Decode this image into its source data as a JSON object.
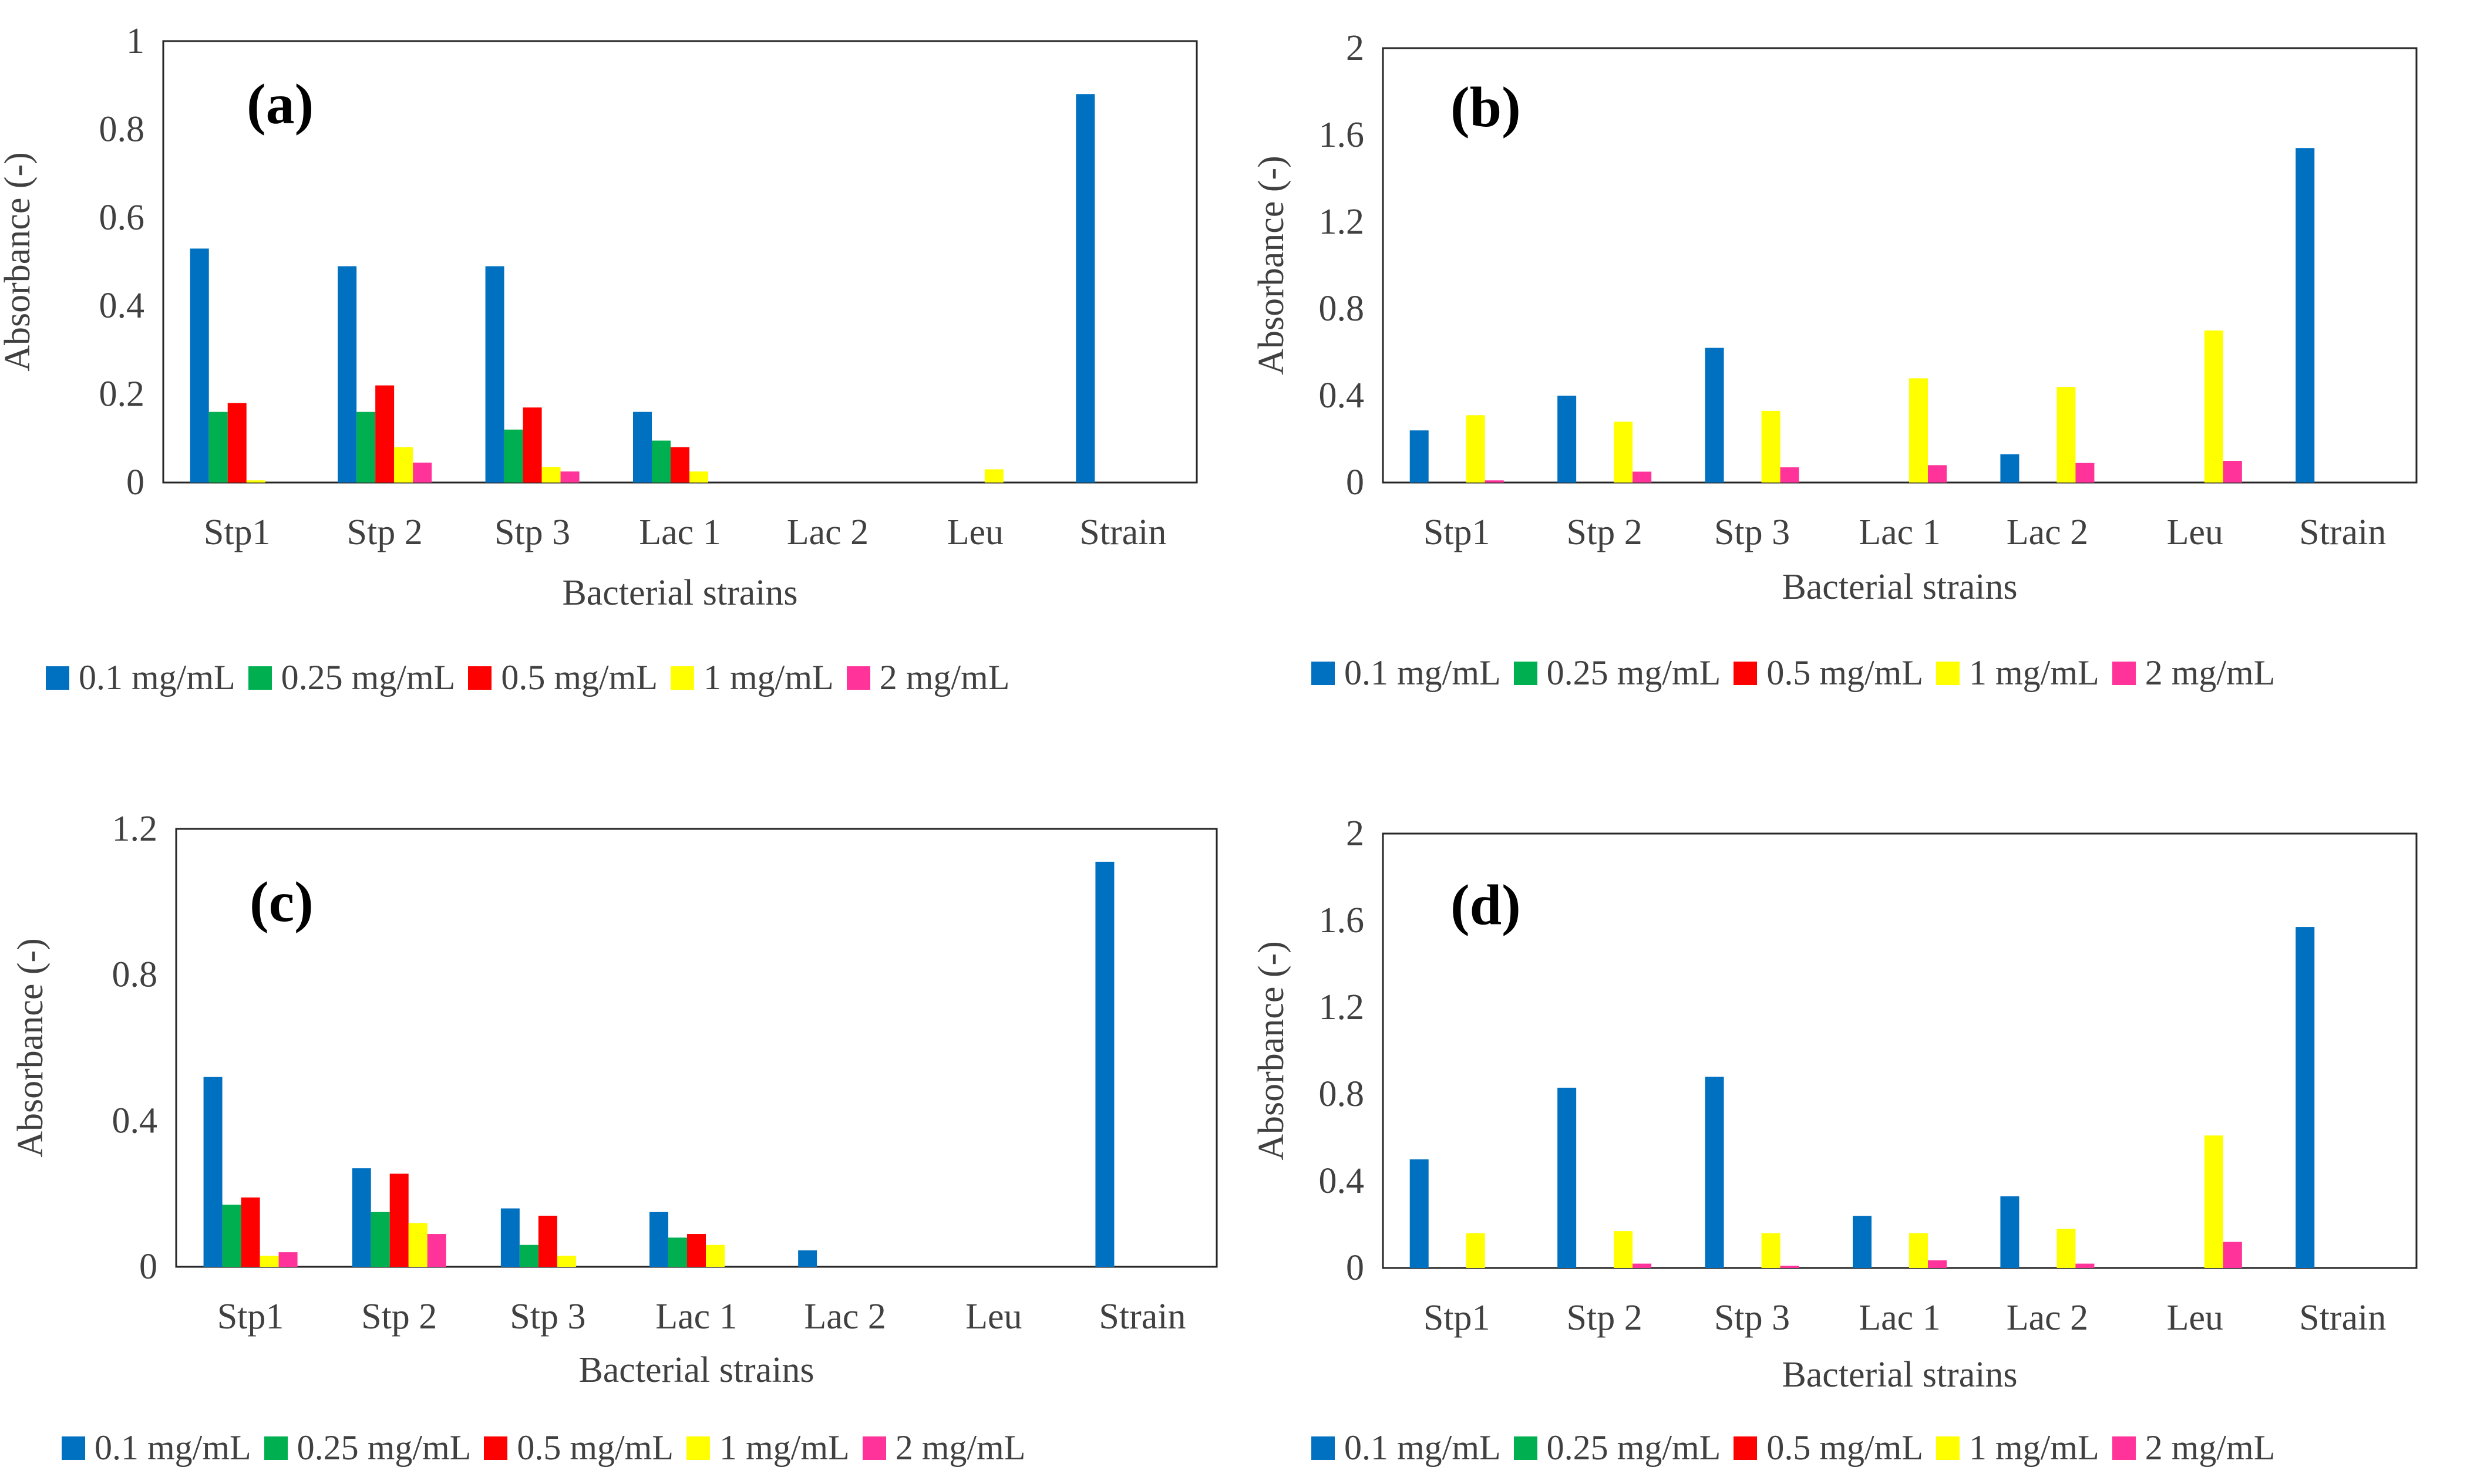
{
  "chart_data": [
    {
      "type": "bar",
      "title": "(a)",
      "xlabel": "Bacterial strains",
      "ylabel": "Absorbance (-)",
      "ylim": [
        0,
        1
      ],
      "yticks": [
        0,
        0.2,
        0.4,
        0.6,
        0.8,
        1
      ],
      "ytick_labels": [
        "0",
        "0.2",
        "0.4",
        "0.6",
        "0.8",
        "1"
      ],
      "categories": [
        "Stp1",
        "Stp 2",
        "Stp 3",
        "Lac 1",
        "Lac 2",
        "Leu",
        "Strain"
      ],
      "series": [
        {
          "name": "0.1 mg/mL",
          "color": "#0070C0",
          "values": [
            0.53,
            0.49,
            0.49,
            0.16,
            0,
            0,
            0.88
          ]
        },
        {
          "name": "0.25 mg/mL",
          "color": "#00B050",
          "values": [
            0.16,
            0.16,
            0.12,
            0.095,
            0,
            0,
            0
          ]
        },
        {
          "name": "0.5 mg/mL",
          "color": "#FF0000",
          "values": [
            0.18,
            0.22,
            0.17,
            0.08,
            0,
            0,
            0
          ]
        },
        {
          "name": "1 mg/mL",
          "color": "#FFFF00",
          "values": [
            0.005,
            0.08,
            0.035,
            0.025,
            0,
            0.03,
            0
          ]
        },
        {
          "name": "2 mg/mL",
          "color": "#FF3399",
          "values": [
            0,
            0.045,
            0.025,
            0,
            0,
            0,
            0
          ]
        }
      ]
    },
    {
      "type": "bar",
      "title": "(b)",
      "xlabel": "Bacterial strains",
      "ylabel": "Absorbance (-)",
      "ylim": [
        0,
        2
      ],
      "yticks": [
        0,
        0.4,
        0.8,
        1.2,
        1.6,
        2
      ],
      "ytick_labels": [
        "0",
        "0.4",
        "0.8",
        "1.2",
        "1.6",
        "2"
      ],
      "categories": [
        "Stp1",
        "Stp 2",
        "Stp 3",
        "Lac 1",
        "Lac 2",
        "Leu",
        "Strain"
      ],
      "series": [
        {
          "name": "0.1 mg/mL",
          "color": "#0070C0",
          "values": [
            0.24,
            0.4,
            0.62,
            0,
            0.13,
            0,
            1.54
          ]
        },
        {
          "name": "0.25 mg/mL",
          "color": "#00B050",
          "values": [
            0,
            0,
            0,
            0,
            0,
            0,
            0
          ]
        },
        {
          "name": "0.5 mg/mL",
          "color": "#FF0000",
          "values": [
            0,
            0,
            0,
            0,
            0,
            0,
            0
          ]
        },
        {
          "name": "1 mg/mL",
          "color": "#FFFF00",
          "values": [
            0.31,
            0.28,
            0.33,
            0.48,
            0.44,
            0.7,
            0
          ]
        },
        {
          "name": "2 mg/mL",
          "color": "#FF3399",
          "values": [
            0.01,
            0.05,
            0.07,
            0.08,
            0.09,
            0.1,
            0
          ]
        }
      ]
    },
    {
      "type": "bar",
      "title": "(c)",
      "xlabel": "Bacterial strains",
      "ylabel": "Absorbance (-)",
      "ylim": [
        0,
        1.2
      ],
      "yticks": [
        0,
        0.4,
        0.8,
        1.2
      ],
      "ytick_labels": [
        "0",
        "0.4",
        "0.8",
        "1.2"
      ],
      "categories": [
        "Stp1",
        "Stp 2",
        "Stp 3",
        "Lac 1",
        "Lac 2",
        "Leu",
        "Strain"
      ],
      "series": [
        {
          "name": "0.1 mg/mL",
          "color": "#0070C0",
          "values": [
            0.52,
            0.27,
            0.16,
            0.15,
            0.045,
            0,
            1.11
          ]
        },
        {
          "name": "0.25 mg/mL",
          "color": "#00B050",
          "values": [
            0.17,
            0.15,
            0.06,
            0.08,
            0,
            0,
            0
          ]
        },
        {
          "name": "0.5 mg/mL",
          "color": "#FF0000",
          "values": [
            0.19,
            0.255,
            0.14,
            0.09,
            0,
            0,
            0
          ]
        },
        {
          "name": "1 mg/mL",
          "color": "#FFFF00",
          "values": [
            0.03,
            0.12,
            0.03,
            0.06,
            0,
            0,
            0
          ]
        },
        {
          "name": "2 mg/mL",
          "color": "#FF3399",
          "values": [
            0.04,
            0.09,
            0,
            0,
            0,
            0,
            0
          ]
        }
      ]
    },
    {
      "type": "bar",
      "title": "(d)",
      "xlabel": "Bacterial strains",
      "ylabel": "Absorbance (-)",
      "ylim": [
        0,
        2
      ],
      "yticks": [
        0,
        0.4,
        0.8,
        1.2,
        1.6,
        2
      ],
      "ytick_labels": [
        "0",
        "0.4",
        "0.8",
        "1.2",
        "1.6",
        "2"
      ],
      "categories": [
        "Stp1",
        "Stp 2",
        "Stp 3",
        "Lac 1",
        "Lac 2",
        "Leu",
        "Strain"
      ],
      "series": [
        {
          "name": "0.1 mg/mL",
          "color": "#0070C0",
          "values": [
            0.5,
            0.83,
            0.88,
            0.24,
            0.33,
            0,
            1.57
          ]
        },
        {
          "name": "0.25 mg/mL",
          "color": "#00B050",
          "values": [
            0,
            0,
            0,
            0,
            0,
            0,
            0
          ]
        },
        {
          "name": "0.5 mg/mL",
          "color": "#FF0000",
          "values": [
            0,
            0,
            0,
            0,
            0,
            0,
            0
          ]
        },
        {
          "name": "1 mg/mL",
          "color": "#FFFF00",
          "values": [
            0.16,
            0.17,
            0.16,
            0.16,
            0.18,
            0.61,
            0
          ]
        },
        {
          "name": "2 mg/mL",
          "color": "#FF3399",
          "values": [
            0,
            0.02,
            0.01,
            0.035,
            0.02,
            0.12,
            0
          ]
        }
      ]
    }
  ]
}
